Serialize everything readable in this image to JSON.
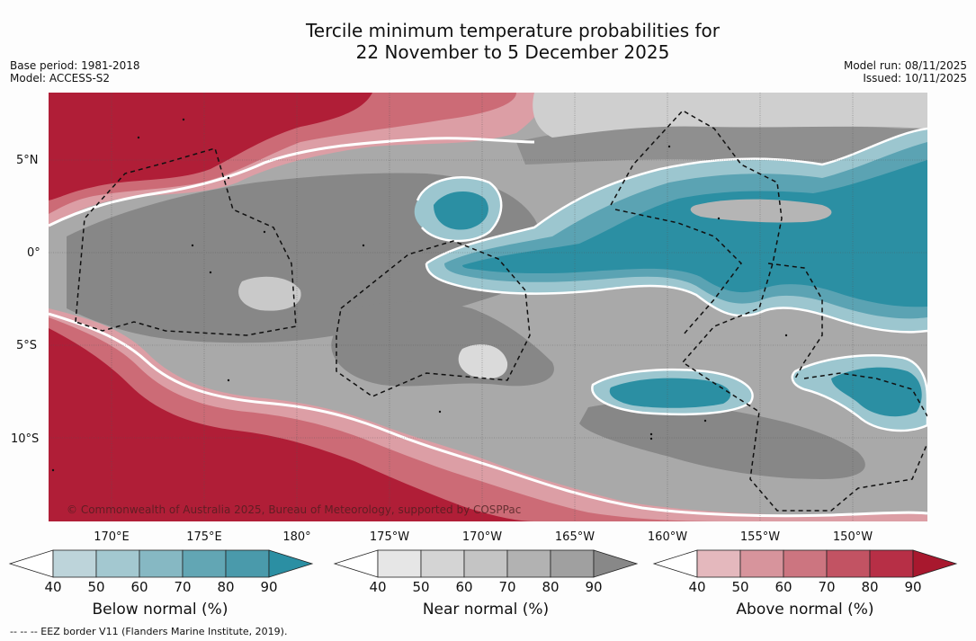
{
  "title_line1": "Tercile minimum temperature probabilities for",
  "title_line2": "22 November to 5 December 2025",
  "meta_left": [
    "Base period: 1981-2018",
    "Model: ACCESS-S2"
  ],
  "meta_right": [
    "Model run: 08/11/2025",
    "Issued: 10/11/2025"
  ],
  "lat_labels": [
    "5°N",
    "0°",
    "5°S",
    "10°S"
  ],
  "lon_labels": [
    "170°E",
    "175°E",
    "180°",
    "175°W",
    "170°W",
    "165°W",
    "160°W",
    "155°W",
    "150°W"
  ],
  "copyright": "© Commonwealth of Australia 2025, Bureau of Meteorology, supported by COSPPac",
  "colorbars": [
    {
      "title": "Below normal (%)",
      "ticks": [
        "40",
        "50",
        "60",
        "70",
        "80",
        "90"
      ],
      "colors": [
        "#ffffff",
        "#bdd4da",
        "#a3c8d0",
        "#86b8c3",
        "#62a6b4",
        "#4a9aab",
        "#2b8fa3"
      ]
    },
    {
      "title": "Near normal (%)",
      "ticks": [
        "40",
        "50",
        "60",
        "70",
        "80",
        "90"
      ],
      "colors": [
        "#ffffff",
        "#e6e6e6",
        "#d4d4d4",
        "#c4c4c4",
        "#b2b2b2",
        "#a0a0a0",
        "#888888"
      ]
    },
    {
      "title": "Above normal (%)",
      "ticks": [
        "40",
        "50",
        "60",
        "70",
        "80",
        "90"
      ],
      "colors": [
        "#ffffff",
        "#e4b8bd",
        "#d7949c",
        "#cc7580",
        "#c25363",
        "#b72f46",
        "#a8182e"
      ]
    }
  ],
  "footnote": "--  --  -- EEZ border V11 (Flanders Marine Institute, 2019).",
  "colors": {
    "above_90": "#b01e37",
    "above_70": "#cc6b76",
    "above_50": "#dc9ea5",
    "near_base": "#a9a9a9",
    "near_high": "#878787",
    "near_low": "#cfcfcf",
    "below_high": "#2b8fa3",
    "below_mid": "#5ba3b3",
    "below_low": "#9cc6cf"
  }
}
